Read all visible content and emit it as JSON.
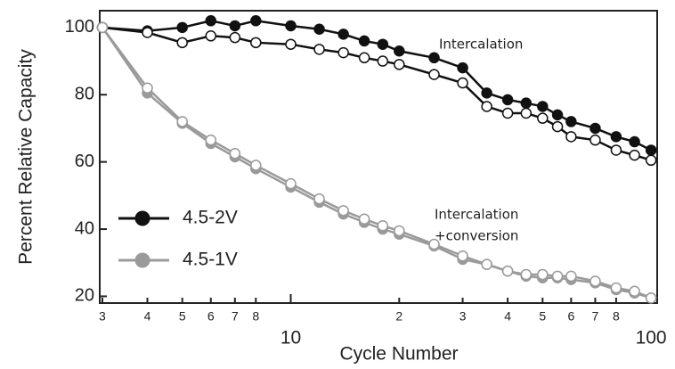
{
  "chart_data": {
    "type": "line",
    "xlabel": "Cycle Number",
    "ylabel": "Percent Relative Capacity",
    "xscale": "log",
    "xlim": [
      2.95,
      104
    ],
    "ylim": [
      18,
      105
    ],
    "xticks": [
      3,
      4,
      5,
      6,
      7,
      8,
      10,
      {
        "value": 20,
        "label": "2"
      },
      {
        "value": 30,
        "label": "3"
      },
      {
        "value": 40,
        "label": "4"
      },
      {
        "value": 50,
        "label": "5"
      },
      {
        "value": 60,
        "label": "6"
      },
      {
        "value": 70,
        "label": "7"
      },
      {
        "value": 80,
        "label": "8"
      },
      100
    ],
    "yticks": [
      20,
      40,
      60,
      80,
      100
    ],
    "legend": "lower left",
    "annotations": [
      [
        "Intercalation"
      ],
      [
        "Intercalation",
        "+conversion"
      ]
    ],
    "x": [
      3,
      4,
      5,
      6,
      7,
      8,
      10,
      12,
      14,
      16,
      18,
      20,
      25,
      30,
      35,
      40,
      45,
      50,
      55,
      60,
      70,
      80,
      90,
      100
    ],
    "series": [
      {
        "name": "4.5-2V",
        "color": "#111111",
        "marker": "filled",
        "values": [
          100,
          99,
          100,
          102,
          100.5,
          102,
          100.5,
          99.5,
          98,
          96,
          95,
          93,
          91,
          88,
          80.5,
          78.5,
          77.5,
          76.5,
          74,
          72,
          70,
          67.5,
          66,
          63.5
        ]
      },
      {
        "color": "#111111",
        "marker": "open",
        "values": [
          100,
          98.5,
          95.5,
          97.5,
          97,
          95.5,
          95,
          93.5,
          92.5,
          91,
          90,
          89,
          86,
          83.5,
          76.5,
          74.5,
          74.5,
          73,
          70.5,
          67.5,
          66.5,
          63.5,
          62,
          60.5
        ]
      },
      {
        "name": "4.5-1V",
        "color": "#9a9a9a",
        "marker": "filled",
        "values": [
          100,
          80.5,
          71.5,
          65.5,
          61.5,
          58,
          52.5,
          48,
          44.5,
          42,
          40,
          38.5,
          35,
          31,
          29.5,
          27.5,
          26,
          25.5,
          25.5,
          25,
          24,
          22,
          21,
          19.5
        ]
      },
      {
        "color": "#9a9a9a",
        "marker": "open",
        "values": [
          100,
          82,
          72,
          66.5,
          62.5,
          59,
          53.5,
          49,
          45.5,
          43,
          41,
          39.5,
          35.5,
          32,
          29.5,
          27.5,
          26.5,
          26.5,
          26,
          26,
          24.5,
          22.5,
          21.5,
          19.5
        ]
      }
    ]
  }
}
